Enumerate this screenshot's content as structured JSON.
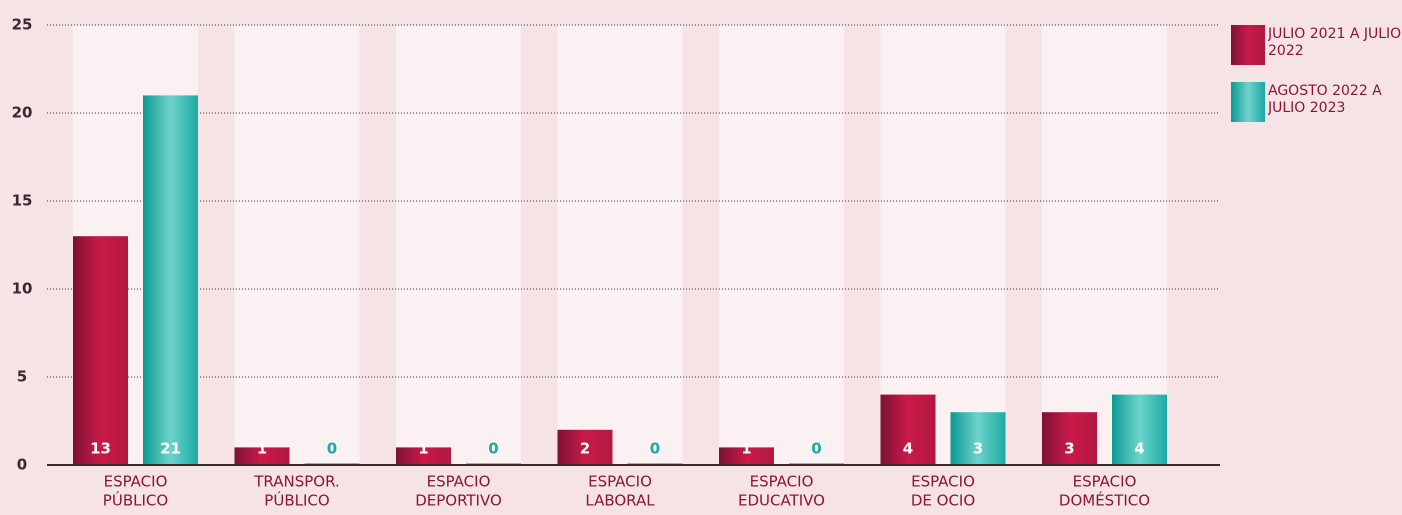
{
  "chart_data": {
    "type": "bar",
    "categories": [
      [
        "ESPACIO",
        "PÚBLICO"
      ],
      [
        "TRANSPOR.",
        "PÚBLICO"
      ],
      [
        "ESPACIO",
        "DEPORTIVO"
      ],
      [
        "ESPACIO",
        "LABORAL"
      ],
      [
        "ESPACIO",
        "EDUCATIVO"
      ],
      [
        "ESPACIO",
        "DE OCIO"
      ],
      [
        "ESPACIO",
        "DOMÉSTICO"
      ]
    ],
    "series": [
      {
        "name": "JULIO 2021 A JULIO 2022",
        "color": "#b3173f",
        "values": [
          13,
          1,
          1,
          2,
          1,
          4,
          3
        ]
      },
      {
        "name": "AGOSTO 2022 A JULIO 2023",
        "color": "#1aaba4",
        "values": [
          21,
          0,
          0,
          0,
          0,
          3,
          4
        ]
      }
    ],
    "ylim": [
      0,
      25
    ],
    "yticks": [
      0,
      5,
      10,
      15,
      20,
      25
    ],
    "grid": true,
    "legend": "right"
  }
}
